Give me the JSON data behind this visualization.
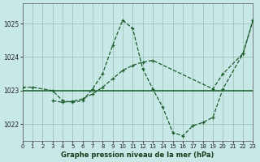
{
  "title": "Graphe pression niveau de la mer (hPa)",
  "bg_color": "#c8e8e8",
  "grid_color": "#99bbaa",
  "line_color": "#1a5c2a",
  "xlim": [
    0,
    23
  ],
  "ylim": [
    1021.5,
    1025.6
  ],
  "yticks": [
    1022,
    1023,
    1024
  ],
  "ytick_extra": 1025,
  "xticks": [
    0,
    1,
    2,
    3,
    4,
    5,
    6,
    7,
    8,
    9,
    10,
    11,
    12,
    13,
    14,
    15,
    16,
    17,
    18,
    19,
    20,
    21,
    22,
    23
  ],
  "line_jagged": {
    "x": [
      0,
      1,
      3,
      4,
      5,
      6,
      7,
      8,
      9,
      10,
      11,
      12,
      13,
      14,
      15,
      16,
      17,
      18,
      19,
      20,
      22,
      23
    ],
    "y": [
      1023.1,
      1023.1,
      1023.0,
      1022.7,
      1022.65,
      1022.7,
      1023.05,
      1023.5,
      1024.35,
      1025.1,
      1024.85,
      1023.65,
      1023.05,
      1022.5,
      1021.75,
      1021.65,
      1021.95,
      1022.05,
      1022.2,
      1023.05,
      1024.1,
      1025.1
    ]
  },
  "line_horizontal": {
    "x": [
      0,
      23
    ],
    "y": [
      1023.0,
      1023.0
    ]
  },
  "line_diagonal": {
    "x": [
      3,
      4,
      5,
      6,
      7,
      8,
      9,
      10,
      11,
      12,
      13,
      19,
      20,
      22,
      23
    ],
    "y": [
      1022.7,
      1022.65,
      1022.68,
      1022.75,
      1022.9,
      1023.1,
      1023.35,
      1023.6,
      1023.75,
      1023.85,
      1023.9,
      1023.05,
      1023.5,
      1024.1,
      1025.1
    ]
  }
}
